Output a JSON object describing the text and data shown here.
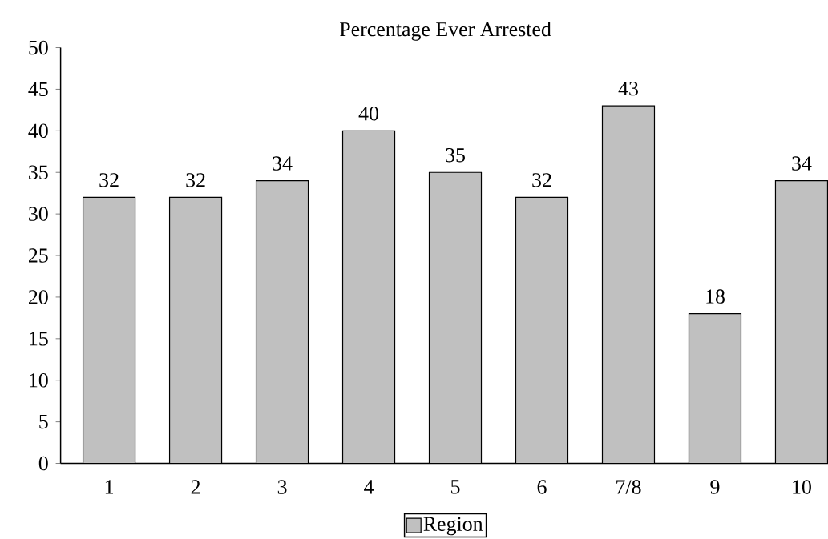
{
  "chart_data": {
    "type": "bar",
    "title": "Percentage Ever Arrested",
    "categories": [
      "1",
      "2",
      "3",
      "4",
      "5",
      "6",
      "7/8",
      "9",
      "10"
    ],
    "series": [
      {
        "name": "Region",
        "color": "#c0c0c0",
        "values": [
          32,
          32,
          34,
          40,
          35,
          32,
          43,
          18,
          34
        ]
      }
    ],
    "ylim": [
      0,
      50
    ],
    "yticks": [
      0,
      5,
      10,
      15,
      20,
      25,
      30,
      35,
      40,
      45,
      50
    ],
    "data_labels": true,
    "legend": "bottom",
    "grid": false
  }
}
